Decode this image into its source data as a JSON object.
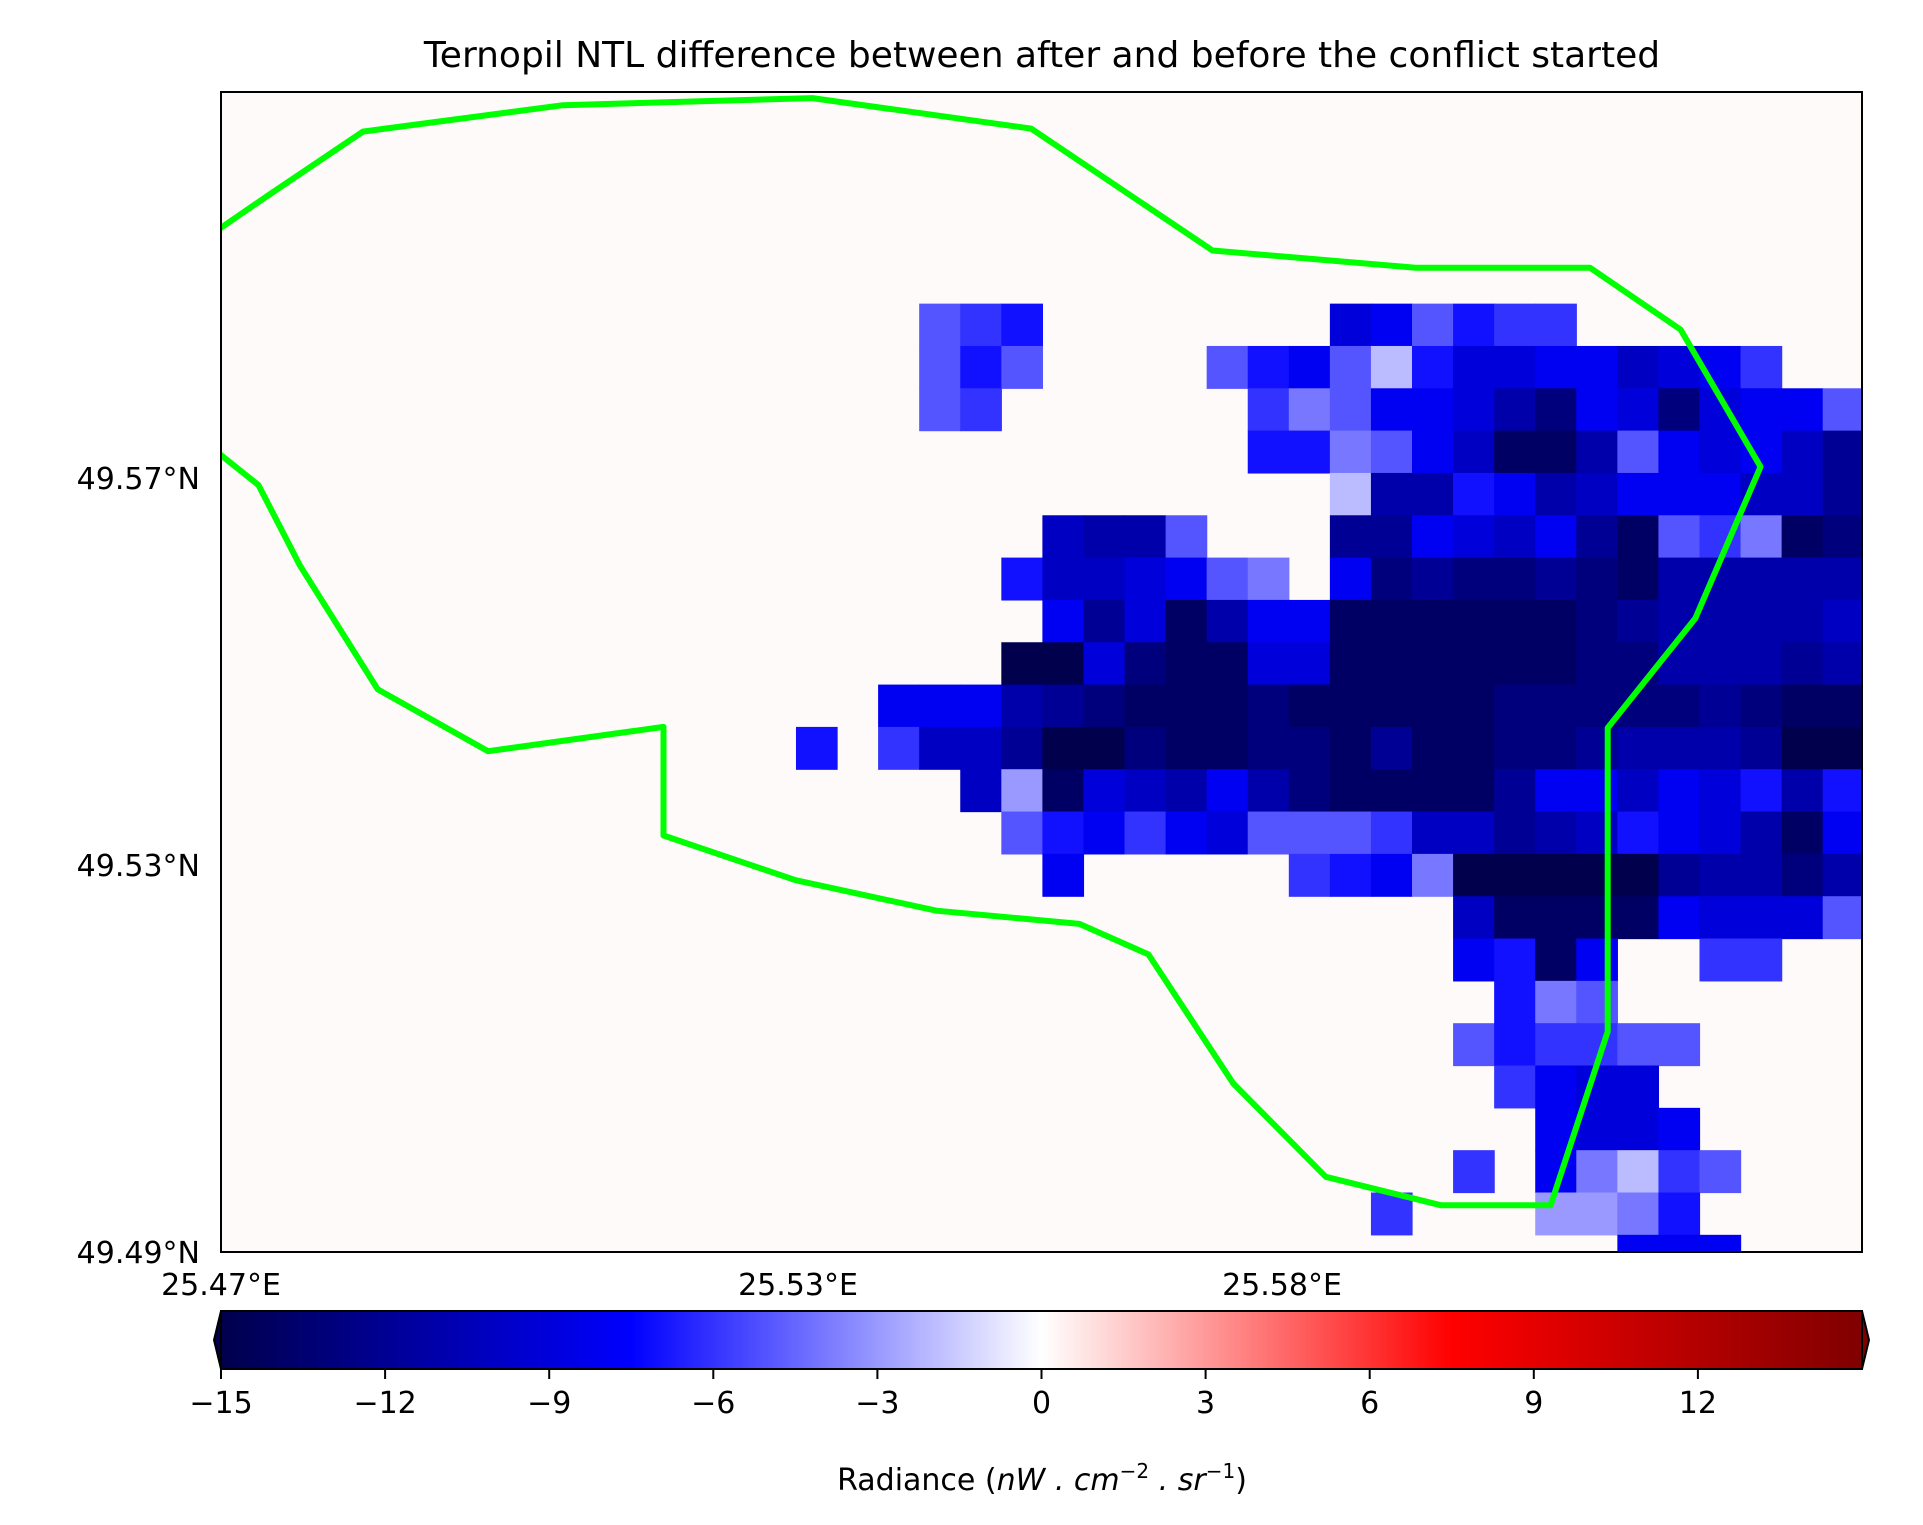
{
  "title": "Ternopil NTL difference between after and before the conflict started",
  "lat_ticks": [
    "49.57°N",
    "49.53°N",
    "49.49°N"
  ],
  "lon_ticks": [
    "25.47°E",
    "25.53°E",
    "25.58°E"
  ],
  "colorbar": {
    "label_prefix": "Radiance (",
    "label_math": "nW . cm",
    "label_exp1": "−2",
    "label_mid": " . sr",
    "label_exp2": "−1",
    "label_suffix": ")",
    "ticks": [
      "−15",
      "−12",
      "−9",
      "−6",
      "−3",
      "0",
      "3",
      "6",
      "9",
      "12"
    ],
    "tick_values": [
      -15,
      -12,
      -9,
      -6,
      -3,
      0,
      3,
      6,
      9,
      12
    ],
    "range": [
      -15,
      15
    ],
    "colormap": "seismic",
    "extend": "both"
  },
  "colors": {
    "boundary": "#00ff00",
    "background": "#fffafa"
  },
  "chart_data": {
    "type": "heatmap",
    "title": "Ternopil NTL difference between after and before the conflict started",
    "x_extent": [
      25.47,
      25.6365
    ],
    "y_extent": [
      49.49,
      49.6042
    ],
    "cell_deg": 0.004167,
    "vmin": -15,
    "vmax": 15,
    "rows": [
      [],
      [],
      [],
      [],
      [],
      [
        [
          17,
          -5
        ],
        [
          18,
          -6
        ],
        [
          19,
          -7
        ],
        [
          27,
          -9
        ],
        [
          28,
          -8
        ],
        [
          29,
          -5
        ],
        [
          30,
          -7
        ],
        [
          31,
          -6
        ],
        [
          32,
          -6
        ]
      ],
      [
        [
          17,
          -5
        ],
        [
          18,
          -7
        ],
        [
          19,
          -5
        ],
        [
          24,
          -5
        ],
        [
          25,
          -7
        ],
        [
          26,
          -8
        ],
        [
          27,
          -5
        ],
        [
          28,
          -2
        ],
        [
          29,
          -7
        ],
        [
          30,
          -9
        ],
        [
          31,
          -9
        ],
        [
          32,
          -8
        ],
        [
          33,
          -8
        ],
        [
          34,
          -10
        ],
        [
          35,
          -9
        ],
        [
          36,
          -8
        ],
        [
          37,
          -6
        ]
      ],
      [
        [
          17,
          -5
        ],
        [
          18,
          -6
        ],
        [
          25,
          -6
        ],
        [
          26,
          -4
        ],
        [
          27,
          -5
        ],
        [
          28,
          -8
        ],
        [
          29,
          -8
        ],
        [
          30,
          -9
        ],
        [
          31,
          -11
        ],
        [
          32,
          -13
        ],
        [
          33,
          -8
        ],
        [
          34,
          -9
        ],
        [
          35,
          -13
        ],
        [
          36,
          -9
        ],
        [
          37,
          -8
        ],
        [
          38,
          -8
        ],
        [
          39,
          -5
        ],
        [
          40,
          -3
        ]
      ],
      [
        [
          25,
          -7
        ],
        [
          26,
          -7
        ],
        [
          27,
          -4
        ],
        [
          28,
          -5
        ],
        [
          29,
          -8
        ],
        [
          30,
          -10
        ],
        [
          31,
          -14
        ],
        [
          32,
          -14
        ],
        [
          33,
          -11
        ],
        [
          34,
          -5
        ],
        [
          35,
          -8
        ],
        [
          36,
          -9
        ],
        [
          37,
          -8
        ],
        [
          38,
          -10
        ],
        [
          39,
          -12
        ],
        [
          40,
          -14
        ]
      ],
      [
        [
          27,
          -2
        ],
        [
          28,
          -11
        ],
        [
          29,
          -11
        ],
        [
          30,
          -7
        ],
        [
          31,
          -8
        ],
        [
          32,
          -11
        ],
        [
          33,
          -10
        ],
        [
          34,
          -8
        ],
        [
          35,
          -8
        ],
        [
          36,
          -8
        ],
        [
          37,
          -10
        ],
        [
          38,
          -10
        ],
        [
          39,
          -12
        ],
        [
          40,
          -14
        ]
      ],
      [
        [
          20,
          -10
        ],
        [
          21,
          -11
        ],
        [
          22,
          -11
        ],
        [
          23,
          -5
        ],
        [
          27,
          -12
        ],
        [
          28,
          -12
        ],
        [
          29,
          -8
        ],
        [
          30,
          -9
        ],
        [
          31,
          -10
        ],
        [
          32,
          -8
        ],
        [
          33,
          -12
        ],
        [
          34,
          -14
        ],
        [
          35,
          -5
        ],
        [
          36,
          -6
        ],
        [
          37,
          -4
        ],
        [
          38,
          -14
        ],
        [
          39,
          -13
        ],
        [
          40,
          -13
        ]
      ],
      [
        [
          19,
          -7
        ],
        [
          20,
          -10
        ],
        [
          21,
          -10
        ],
        [
          22,
          -9
        ],
        [
          23,
          -8
        ],
        [
          24,
          -5
        ],
        [
          25,
          -4
        ],
        [
          27,
          -8
        ],
        [
          28,
          -13
        ],
        [
          29,
          -12
        ],
        [
          30,
          -13
        ],
        [
          31,
          -13
        ],
        [
          32,
          -12
        ],
        [
          33,
          -13
        ],
        [
          34,
          -14
        ],
        [
          35,
          -11
        ],
        [
          36,
          -11
        ],
        [
          37,
          -11
        ],
        [
          38,
          -11
        ],
        [
          39,
          -11
        ],
        [
          40,
          -11
        ]
      ],
      [
        [
          20,
          -8
        ],
        [
          21,
          -12
        ],
        [
          22,
          -9
        ],
        [
          23,
          -14
        ],
        [
          24,
          -11
        ],
        [
          25,
          -8
        ],
        [
          26,
          -8
        ],
        [
          27,
          -14
        ],
        [
          28,
          -14
        ],
        [
          29,
          -14
        ],
        [
          30,
          -14
        ],
        [
          31,
          -14
        ],
        [
          32,
          -14
        ],
        [
          33,
          -13
        ],
        [
          34,
          -12
        ],
        [
          35,
          -11
        ],
        [
          36,
          -11
        ],
        [
          37,
          -11
        ],
        [
          38,
          -11
        ],
        [
          39,
          -10
        ],
        [
          40,
          -11
        ]
      ],
      [
        [
          19,
          -15
        ],
        [
          20,
          -15
        ],
        [
          21,
          -9
        ],
        [
          22,
          -13
        ],
        [
          23,
          -14
        ],
        [
          24,
          -14
        ],
        [
          25,
          -9
        ],
        [
          26,
          -9
        ],
        [
          27,
          -14
        ],
        [
          28,
          -14
        ],
        [
          29,
          -14
        ],
        [
          30,
          -14
        ],
        [
          31,
          -14
        ],
        [
          32,
          -14
        ],
        [
          33,
          -13
        ],
        [
          34,
          -13
        ],
        [
          35,
          -11
        ],
        [
          36,
          -11
        ],
        [
          37,
          -11
        ],
        [
          38,
          -12
        ],
        [
          39,
          -11
        ],
        [
          40,
          -11
        ]
      ],
      [
        [
          16,
          -8
        ],
        [
          17,
          -8
        ],
        [
          18,
          -8
        ],
        [
          19,
          -11
        ],
        [
          20,
          -12
        ],
        [
          21,
          -13
        ],
        [
          22,
          -14
        ],
        [
          23,
          -14
        ],
        [
          24,
          -14
        ],
        [
          25,
          -13
        ],
        [
          26,
          -14
        ],
        [
          27,
          -14
        ],
        [
          28,
          -14
        ],
        [
          29,
          -14
        ],
        [
          30,
          -14
        ],
        [
          31,
          -13
        ],
        [
          32,
          -13
        ],
        [
          33,
          -13
        ],
        [
          34,
          -13
        ],
        [
          35,
          -13
        ],
        [
          36,
          -12
        ],
        [
          37,
          -13
        ],
        [
          38,
          -14
        ],
        [
          39,
          -14
        ],
        [
          40,
          -10
        ]
      ],
      [
        [
          14,
          -7
        ],
        [
          16,
          -6
        ],
        [
          17,
          -10
        ],
        [
          18,
          -10
        ],
        [
          19,
          -12
        ],
        [
          20,
          -15
        ],
        [
          21,
          -15
        ],
        [
          22,
          -13
        ],
        [
          23,
          -14
        ],
        [
          24,
          -14
        ],
        [
          25,
          -13
        ],
        [
          26,
          -13
        ],
        [
          27,
          -14
        ],
        [
          28,
          -12
        ],
        [
          29,
          -14
        ],
        [
          30,
          -14
        ],
        [
          31,
          -13
        ],
        [
          32,
          -13
        ],
        [
          33,
          -12
        ],
        [
          34,
          -11
        ],
        [
          35,
          -11
        ],
        [
          36,
          -11
        ],
        [
          37,
          -12
        ],
        [
          38,
          -15
        ],
        [
          39,
          -15
        ],
        [
          40,
          -10
        ]
      ],
      [
        [
          18,
          -10
        ],
        [
          19,
          -3
        ],
        [
          20,
          -14
        ],
        [
          21,
          -9
        ],
        [
          22,
          -10
        ],
        [
          23,
          -11
        ],
        [
          24,
          -8
        ],
        [
          25,
          -11
        ],
        [
          26,
          -13
        ],
        [
          27,
          -14
        ],
        [
          28,
          -14
        ],
        [
          29,
          -14
        ],
        [
          30,
          -14
        ],
        [
          31,
          -12
        ],
        [
          32,
          -8
        ],
        [
          33,
          -8
        ],
        [
          34,
          -10
        ],
        [
          35,
          -8
        ],
        [
          36,
          -9
        ],
        [
          37,
          -7
        ],
        [
          38,
          -11
        ],
        [
          39,
          -7
        ],
        [
          40,
          -14
        ]
      ],
      [
        [
          19,
          -5
        ],
        [
          20,
          -7
        ],
        [
          21,
          -8
        ],
        [
          22,
          -6
        ],
        [
          23,
          -8
        ],
        [
          24,
          -9
        ],
        [
          25,
          -5
        ],
        [
          26,
          -5
        ],
        [
          27,
          -5
        ],
        [
          28,
          -6
        ],
        [
          29,
          -10
        ],
        [
          30,
          -10
        ],
        [
          31,
          -12
        ],
        [
          32,
          -11
        ],
        [
          33,
          -10
        ],
        [
          34,
          -7
        ],
        [
          35,
          -8
        ],
        [
          36,
          -9
        ],
        [
          37,
          -11
        ],
        [
          38,
          -14
        ],
        [
          39,
          -8
        ],
        [
          40,
          -12
        ]
      ],
      [
        [
          20,
          -8
        ],
        [
          26,
          -6
        ],
        [
          27,
          -7
        ],
        [
          28,
          -8
        ],
        [
          29,
          -4
        ],
        [
          30,
          -15
        ],
        [
          31,
          -15
        ],
        [
          32,
          -15
        ],
        [
          33,
          -15
        ],
        [
          34,
          -15
        ],
        [
          35,
          -12
        ],
        [
          36,
          -11
        ],
        [
          37,
          -11
        ],
        [
          38,
          -13
        ],
        [
          39,
          -11
        ],
        [
          40,
          -12
        ]
      ],
      [
        [
          30,
          -10
        ],
        [
          31,
          -14
        ],
        [
          32,
          -14
        ],
        [
          33,
          -14
        ],
        [
          34,
          -14
        ],
        [
          35,
          -8
        ],
        [
          36,
          -9
        ],
        [
          37,
          -9
        ],
        [
          38,
          -9
        ],
        [
          39,
          -5
        ]
      ],
      [
        [
          30,
          -8
        ],
        [
          31,
          -7
        ],
        [
          32,
          -14
        ],
        [
          33,
          -8
        ],
        [
          36,
          -6
        ],
        [
          37,
          -6
        ]
      ],
      [
        [
          31,
          -7
        ],
        [
          32,
          -4
        ],
        [
          33,
          -5
        ]
      ],
      [
        [
          30,
          -5
        ],
        [
          31,
          -7
        ],
        [
          32,
          -6
        ],
        [
          33,
          -6
        ],
        [
          34,
          -5
        ],
        [
          35,
          -5
        ]
      ],
      [
        [
          31,
          -6
        ],
        [
          32,
          -8
        ],
        [
          33,
          -9
        ],
        [
          34,
          -9
        ]
      ],
      [
        [
          32,
          -8
        ],
        [
          33,
          -9
        ],
        [
          34,
          -9
        ],
        [
          35,
          -8
        ]
      ],
      [
        [
          30,
          -6
        ],
        [
          32,
          -8
        ],
        [
          33,
          -4
        ],
        [
          34,
          -2
        ],
        [
          35,
          -6
        ],
        [
          36,
          -5
        ]
      ],
      [
        [
          28,
          -6
        ],
        [
          32,
          -3
        ],
        [
          33,
          -3
        ],
        [
          34,
          -4
        ],
        [
          35,
          -7
        ]
      ],
      [
        [
          34,
          -8
        ],
        [
          35,
          -8
        ],
        [
          36,
          -8
        ]
      ],
      [
        [
          31,
          -6
        ],
        [
          32,
          -11
        ],
        [
          33,
          -11
        ],
        [
          34,
          -11
        ],
        [
          35,
          -10
        ],
        [
          36,
          -10
        ]
      ]
    ],
    "boundary_lonlat": [
      [
        25.4749,
        49.5941
      ],
      [
        25.4844,
        49.6003
      ],
      [
        25.5047,
        49.6029
      ],
      [
        25.53,
        49.6036
      ],
      [
        25.5522,
        49.6006
      ],
      [
        25.5706,
        49.5886
      ],
      [
        25.5912,
        49.5869
      ],
      [
        25.6089,
        49.5869
      ],
      [
        25.6181,
        49.5808
      ],
      [
        25.6262,
        49.5673
      ],
      [
        25.6196,
        49.5524
      ],
      [
        25.6107,
        49.5416
      ],
      [
        25.6107,
        49.5117
      ],
      [
        25.6049,
        49.4946
      ],
      [
        25.5938,
        49.4946
      ],
      [
        25.5821,
        49.4974
      ],
      [
        25.5727,
        49.5066
      ],
      [
        25.5641,
        49.5193
      ],
      [
        25.5571,
        49.5223
      ],
      [
        25.5426,
        49.5236
      ],
      [
        25.5283,
        49.5266
      ],
      [
        25.5149,
        49.531
      ],
      [
        25.5149,
        49.5417
      ],
      [
        25.4971,
        49.5393
      ],
      [
        25.4859,
        49.5454
      ],
      [
        25.478,
        49.5576
      ],
      [
        25.4738,
        49.5655
      ],
      [
        25.468,
        49.57
      ],
      [
        25.4648,
        49.5727
      ],
      [
        25.4648,
        49.5847
      ],
      [
        25.468,
        49.5895
      ],
      [
        25.4749,
        49.5941
      ]
    ]
  }
}
